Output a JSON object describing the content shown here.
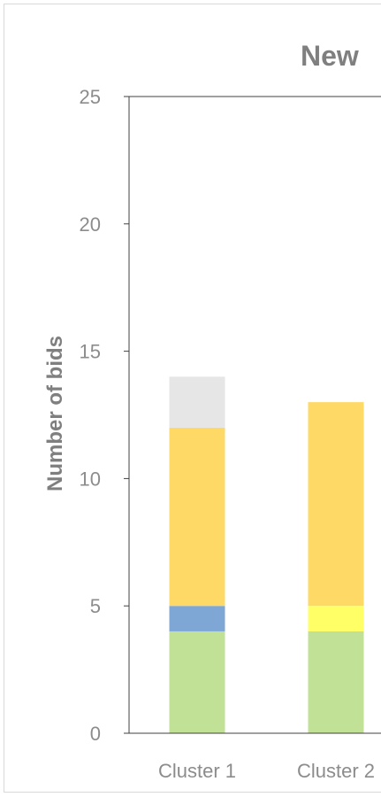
{
  "chart_data": {
    "type": "bar",
    "stacked": true,
    "title": "New",
    "xlabel": "",
    "ylabel": "Number of bids",
    "ylim": [
      0,
      25
    ],
    "yticks": [
      "0",
      "5",
      "10",
      "15",
      "20",
      "25"
    ],
    "categories": [
      "Cluster 1",
      "Cluster 2"
    ],
    "series": [
      {
        "color": "#c1e196",
        "values": [
          4,
          4
        ]
      },
      {
        "color": "#7fa7d6",
        "values": [
          1,
          0
        ]
      },
      {
        "color": "#ffff66",
        "values": [
          0,
          1
        ]
      },
      {
        "color": "#ffd966",
        "values": [
          7,
          8
        ]
      },
      {
        "color": "#e7e6e6",
        "values": [
          2,
          0
        ]
      }
    ],
    "grid": false,
    "legend": "none"
  }
}
